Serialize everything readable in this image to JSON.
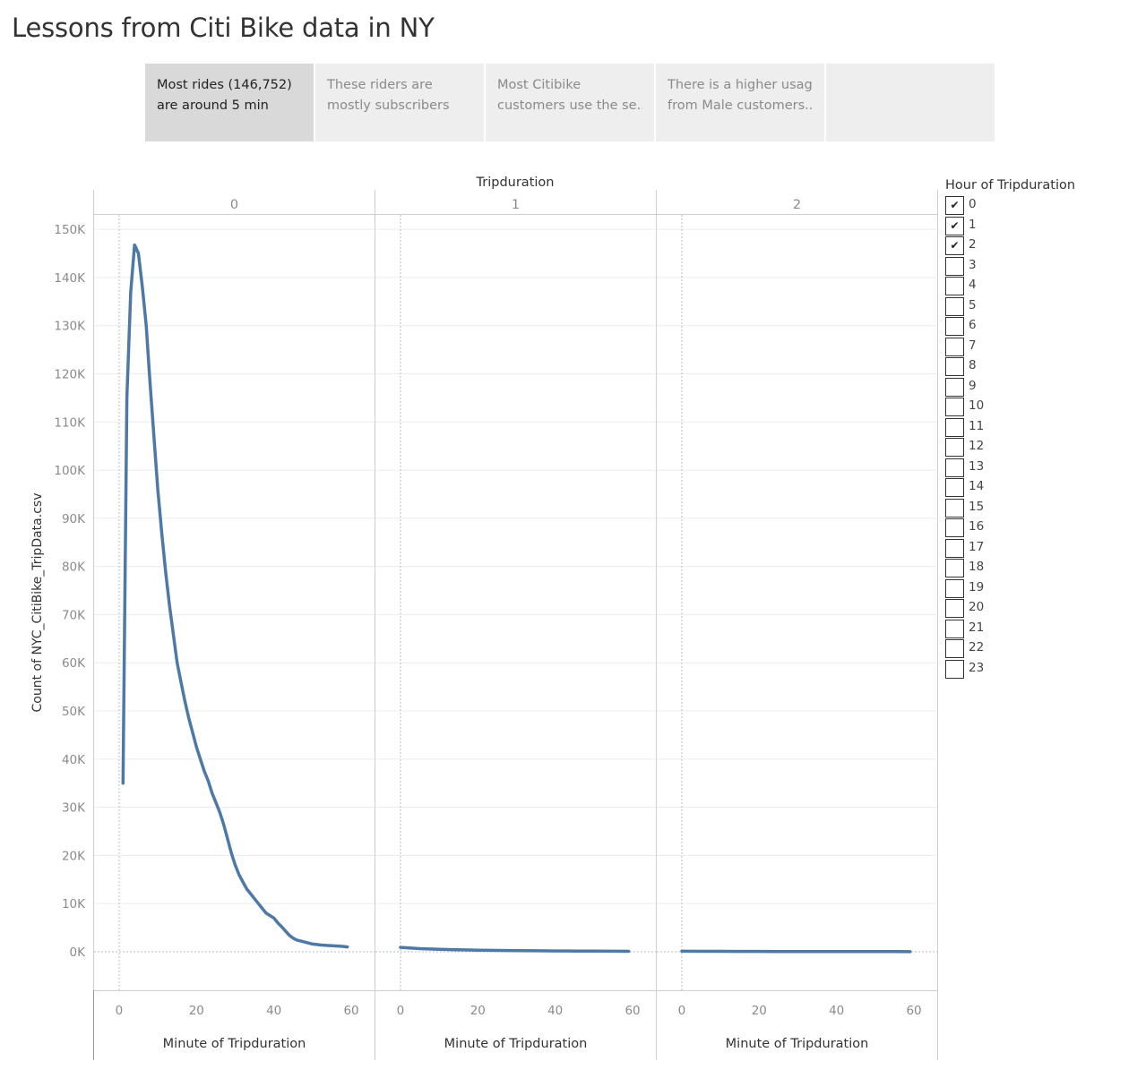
{
  "title": "Lessons from Citi Bike data in NY",
  "story_points": [
    {
      "line1": "Most rides (146,752)",
      "line2": "are around 5 min",
      "active": true
    },
    {
      "line1": "These riders are",
      "line2": "mostly subscribers",
      "active": false
    },
    {
      "line1": "Most Citibike",
      "line2": "customers use the se..",
      "active": false
    },
    {
      "line1": "There is a higher usage",
      "line2": "from Male customers..",
      "active": false
    },
    {
      "line1": "",
      "line2": "",
      "active": false
    }
  ],
  "legend": {
    "title": "Hour of Tripduration",
    "check_mark": "✔",
    "items": [
      {
        "label": "0",
        "checked": true
      },
      {
        "label": "1",
        "checked": true
      },
      {
        "label": "2",
        "checked": true
      },
      {
        "label": "3",
        "checked": false
      },
      {
        "label": "4",
        "checked": false
      },
      {
        "label": "5",
        "checked": false
      },
      {
        "label": "6",
        "checked": false
      },
      {
        "label": "7",
        "checked": false
      },
      {
        "label": "8",
        "checked": false
      },
      {
        "label": "9",
        "checked": false
      },
      {
        "label": "10",
        "checked": false
      },
      {
        "label": "11",
        "checked": false
      },
      {
        "label": "12",
        "checked": false
      },
      {
        "label": "13",
        "checked": false
      },
      {
        "label": "14",
        "checked": false
      },
      {
        "label": "15",
        "checked": false
      },
      {
        "label": "16",
        "checked": false
      },
      {
        "label": "17",
        "checked": false
      },
      {
        "label": "18",
        "checked": false
      },
      {
        "label": "19",
        "checked": false
      },
      {
        "label": "20",
        "checked": false
      },
      {
        "label": "21",
        "checked": false
      },
      {
        "label": "22",
        "checked": false
      },
      {
        "label": "23",
        "checked": false
      }
    ]
  },
  "colors": {
    "line": "#4e79a7",
    "grid": "#ececec",
    "axis": "#cfcfcf",
    "zero_line": "#bdbdbd",
    "text": "#333333",
    "tick_text": "#8a8a8a"
  },
  "chart_data": {
    "type": "line",
    "column_header": "Tripduration",
    "panel_field": "Hour of Tripduration",
    "panels": [
      "0",
      "1",
      "2"
    ],
    "xlabel": "Minute of Tripduration",
    "ylabel": "Count of NYC_CitiBike_TripData.csv",
    "x_ticks": [
      0,
      20,
      40,
      60
    ],
    "x_tick_labels": [
      "0",
      "20",
      "40",
      "60"
    ],
    "xlim": [
      -3,
      63
    ],
    "y_ticks": [
      0,
      10000,
      20000,
      30000,
      40000,
      50000,
      60000,
      70000,
      80000,
      90000,
      100000,
      110000,
      120000,
      130000,
      140000,
      150000
    ],
    "y_tick_labels": [
      "0K",
      "10K",
      "20K",
      "30K",
      "40K",
      "50K",
      "60K",
      "70K",
      "80K",
      "90K",
      "100K",
      "110K",
      "120K",
      "130K",
      "140K",
      "150K"
    ],
    "ylim": [
      -8000,
      153000
    ],
    "grid": true,
    "series": [
      {
        "panel": "0",
        "x": [
          1,
          2,
          3,
          4,
          5,
          6,
          7,
          8,
          9,
          10,
          11,
          12,
          13,
          14,
          15,
          16,
          17,
          18,
          19,
          20,
          21,
          22,
          23,
          24,
          25,
          26,
          27,
          28,
          29,
          30,
          31,
          32,
          33,
          34,
          35,
          36,
          37,
          38,
          39,
          40,
          41,
          42,
          43,
          44,
          45,
          46,
          47,
          48,
          49,
          50,
          51,
          52,
          53,
          54,
          55,
          56,
          57,
          58,
          59
        ],
        "y": [
          35000,
          115000,
          137000,
          146752,
          145000,
          138000,
          130000,
          118000,
          107000,
          96000,
          87000,
          79000,
          72000,
          66000,
          60000,
          56000,
          52000,
          48500,
          45500,
          42500,
          40000,
          37500,
          35500,
          33000,
          31000,
          29000,
          26500,
          23500,
          20500,
          18000,
          16000,
          14500,
          13000,
          12000,
          11000,
          10000,
          9000,
          8000,
          7500,
          7000,
          6000,
          5200,
          4300,
          3400,
          2800,
          2400,
          2200,
          2000,
          1800,
          1600,
          1500,
          1400,
          1350,
          1300,
          1250,
          1200,
          1150,
          1100,
          1000
        ]
      },
      {
        "panel": "1",
        "x": [
          0,
          5,
          10,
          15,
          20,
          25,
          30,
          35,
          40,
          45,
          50,
          55,
          59
        ],
        "y": [
          900,
          650,
          500,
          400,
          330,
          280,
          240,
          200,
          170,
          150,
          120,
          100,
          80
        ]
      },
      {
        "panel": "2",
        "x": [
          0,
          5,
          10,
          15,
          20,
          25,
          30,
          35,
          40,
          45,
          50,
          55,
          59
        ],
        "y": [
          100,
          90,
          80,
          70,
          60,
          55,
          50,
          45,
          40,
          35,
          30,
          25,
          20
        ]
      }
    ]
  }
}
